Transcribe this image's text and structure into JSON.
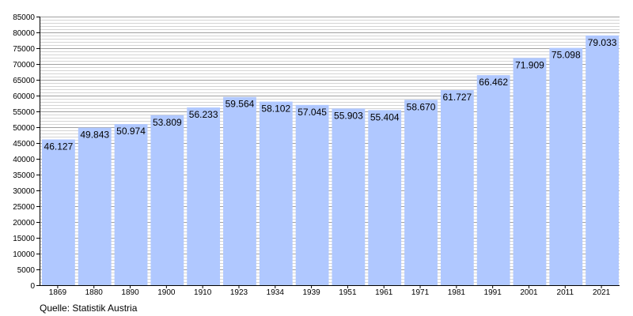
{
  "chart_data": {
    "type": "bar",
    "title": "",
    "xlabel": "",
    "ylabel": "",
    "categories": [
      "1869",
      "1880",
      "1890",
      "1900",
      "1910",
      "1923",
      "1934",
      "1939",
      "1951",
      "1961",
      "1971",
      "1981",
      "1991",
      "2001",
      "2011",
      "2021"
    ],
    "values": [
      46127,
      49843,
      50974,
      53809,
      56233,
      59564,
      58102,
      57045,
      55903,
      55404,
      58670,
      61727,
      66462,
      71909,
      75098,
      79033
    ],
    "value_labels": [
      "46.127",
      "49.843",
      "50.974",
      "53.809",
      "56.233",
      "59.564",
      "58.102",
      "57.045",
      "55.903",
      "55.404",
      "58.670",
      "61.727",
      "66.462",
      "71.909",
      "75.098",
      "79.033"
    ],
    "ylim": [
      0,
      85000
    ],
    "y_major_ticks": [
      0,
      5000,
      10000,
      15000,
      20000,
      25000,
      30000,
      35000,
      40000,
      45000,
      50000,
      55000,
      60000,
      65000,
      70000,
      75000,
      80000,
      85000
    ],
    "y_minor_step": 1000,
    "grid": true,
    "legend": "none",
    "colors": {
      "bar": "#b0c8ff",
      "grid_major": "#a0a0a0",
      "grid_minor": "#d4d4d4",
      "axis": "#000000",
      "text": "#000000"
    }
  },
  "source_note": "Quelle: Statistik Austria"
}
